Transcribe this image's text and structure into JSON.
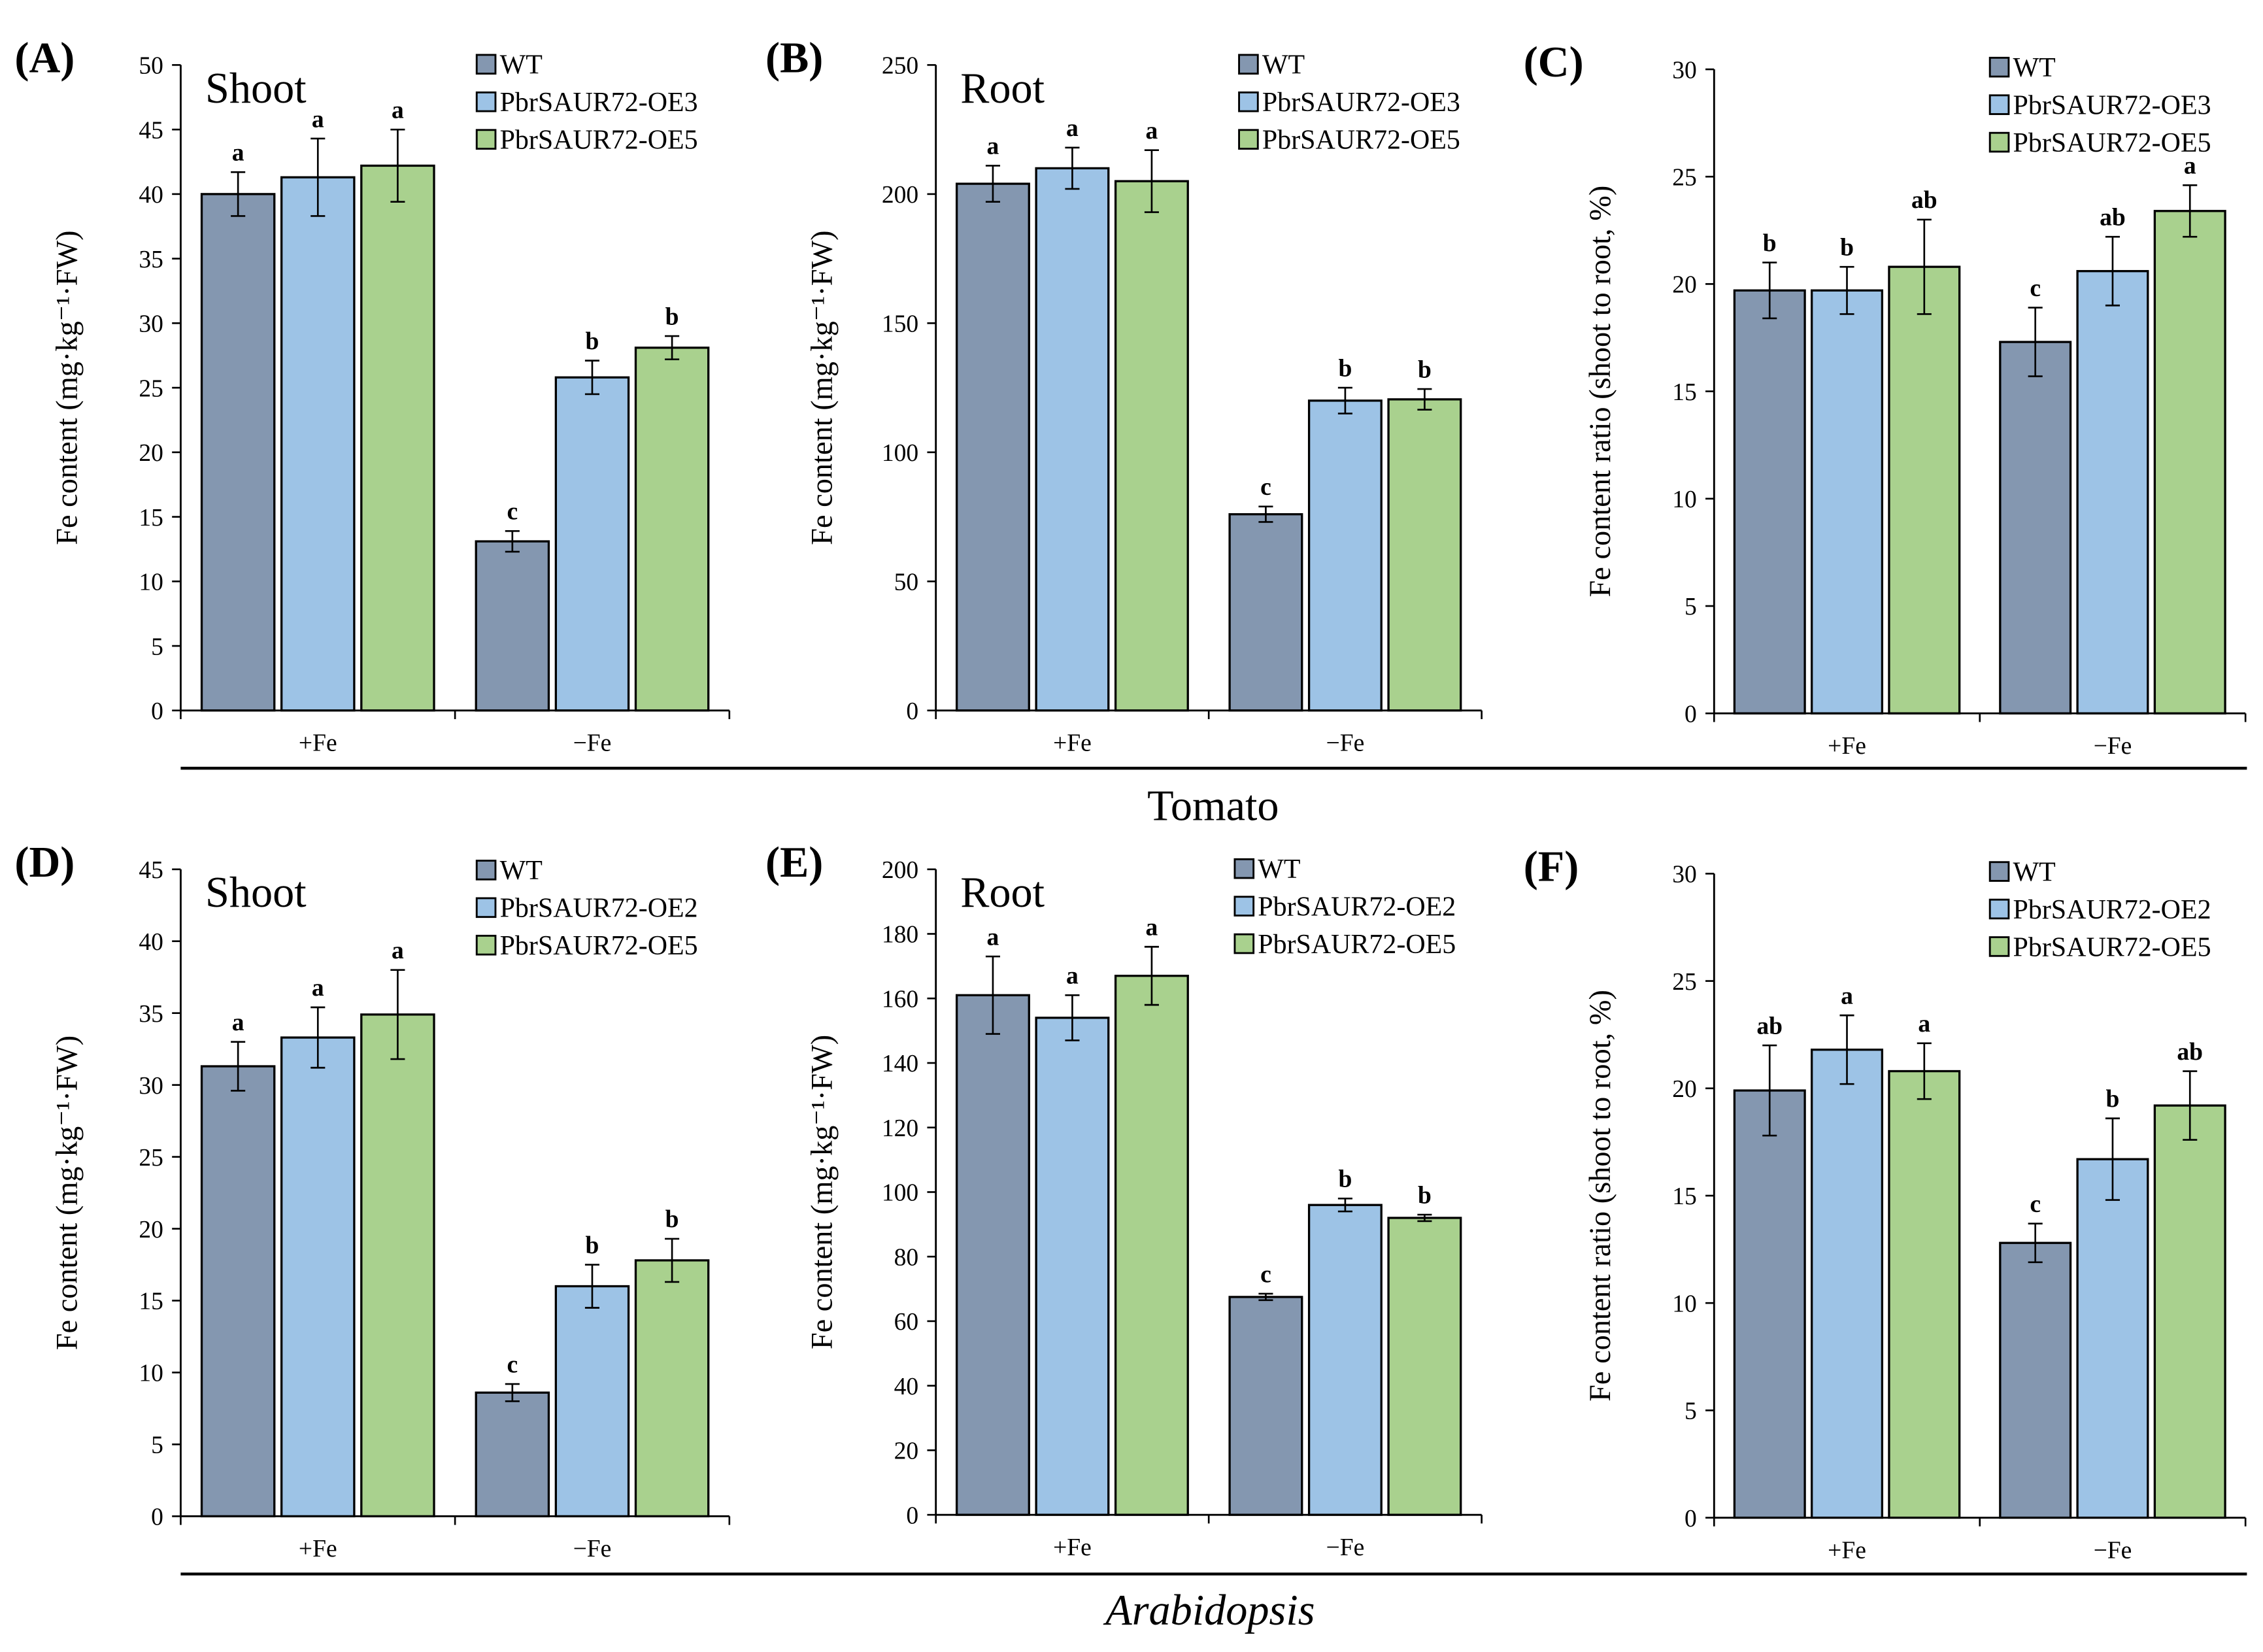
{
  "colors": {
    "WT": "#8497b0",
    "OE_a": "#9dc3e6",
    "OE5": "#a9d18e"
  },
  "species": [
    "Tomato",
    "Arabidopsis"
  ],
  "chart_data": [
    {
      "type": "bar",
      "panel": "(A)",
      "title": "Shoot",
      "ylabel": "Fe content (mg·kg⁻¹·FW)",
      "ylim": [
        0,
        50
      ],
      "ystep": 5,
      "categories": [
        "+Fe",
        "−Fe"
      ],
      "series": [
        {
          "name": "WT",
          "values": [
            40.0,
            13.1
          ],
          "errors": [
            1.7,
            0.8
          ],
          "letters": [
            "a",
            "c"
          ]
        },
        {
          "name": "PbrSAUR72-OE3",
          "values": [
            41.3,
            25.8
          ],
          "errors": [
            3.0,
            1.3
          ],
          "letters": [
            "a",
            "b"
          ]
        },
        {
          "name": "PbrSAUR72-OE5",
          "values": [
            42.2,
            28.1
          ],
          "errors": [
            2.8,
            0.9
          ],
          "letters": [
            "a",
            "b"
          ]
        }
      ]
    },
    {
      "type": "bar",
      "panel": "(B)",
      "title": "Root",
      "ylabel": "Fe content (mg·kg⁻¹·FW)",
      "ylim": [
        0,
        250
      ],
      "ystep": 50,
      "categories": [
        "+Fe",
        "−Fe"
      ],
      "series": [
        {
          "name": "WT",
          "values": [
            204,
            76
          ],
          "errors": [
            7,
            3
          ],
          "letters": [
            "a",
            "c"
          ]
        },
        {
          "name": "PbrSAUR72-OE3",
          "values": [
            210,
            120
          ],
          "errors": [
            8,
            5
          ],
          "letters": [
            "a",
            "b"
          ]
        },
        {
          "name": "PbrSAUR72-OE5",
          "values": [
            205,
            120.5
          ],
          "errors": [
            12,
            4
          ],
          "letters": [
            "a",
            "b"
          ]
        }
      ]
    },
    {
      "type": "bar",
      "panel": "(C)",
      "title": "",
      "ylabel": "Fe content ratio (shoot to root, %)",
      "ylim": [
        0,
        30
      ],
      "ystep": 5,
      "categories": [
        "+Fe",
        "−Fe"
      ],
      "series": [
        {
          "name": "WT",
          "values": [
            19.7,
            17.3
          ],
          "errors": [
            1.3,
            1.6
          ],
          "letters": [
            "b",
            "c"
          ]
        },
        {
          "name": "PbrSAUR72-OE3",
          "values": [
            19.7,
            20.6
          ],
          "errors": [
            1.1,
            1.6
          ],
          "letters": [
            "b",
            "ab"
          ]
        },
        {
          "name": "PbrSAUR72-OE5",
          "values": [
            20.8,
            23.4
          ],
          "errors": [
            2.2,
            1.2
          ],
          "letters": [
            "ab",
            "a"
          ]
        }
      ]
    },
    {
      "type": "bar",
      "panel": "(D)",
      "title": "Shoot",
      "ylabel": "Fe content (mg·kg⁻¹·FW)",
      "ylim": [
        0,
        45
      ],
      "ystep": 5,
      "categories": [
        "+Fe",
        "−Fe"
      ],
      "series": [
        {
          "name": "WT",
          "values": [
            31.3,
            8.6
          ],
          "errors": [
            1.7,
            0.6
          ],
          "letters": [
            "a",
            "c"
          ]
        },
        {
          "name": "PbrSAUR72-OE2",
          "values": [
            33.3,
            16.0
          ],
          "errors": [
            2.1,
            1.5
          ],
          "letters": [
            "a",
            "b"
          ]
        },
        {
          "name": "PbrSAUR72-OE5",
          "values": [
            34.9,
            17.8
          ],
          "errors": [
            3.1,
            1.5
          ],
          "letters": [
            "a",
            "b"
          ]
        }
      ]
    },
    {
      "type": "bar",
      "panel": "(E)",
      "title": "Root",
      "ylabel": "Fe content (mg·kg⁻¹·FW)",
      "ylim": [
        0,
        200
      ],
      "ystep": 20,
      "categories": [
        "+Fe",
        "−Fe"
      ],
      "series": [
        {
          "name": "WT",
          "values": [
            161,
            67.5
          ],
          "errors": [
            12,
            1
          ],
          "letters": [
            "a",
            "c"
          ]
        },
        {
          "name": "PbrSAUR72-OE2",
          "values": [
            154,
            96
          ],
          "errors": [
            7,
            2
          ],
          "letters": [
            "a",
            "b"
          ]
        },
        {
          "name": "PbrSAUR72-OE5",
          "values": [
            167,
            92
          ],
          "errors": [
            9,
            1
          ],
          "letters": [
            "a",
            "b"
          ]
        }
      ]
    },
    {
      "type": "bar",
      "panel": "(F)",
      "title": "",
      "ylabel": "Fe content ratio (shoot to root, %)",
      "ylim": [
        0,
        30
      ],
      "ystep": 5,
      "categories": [
        "+Fe",
        "−Fe"
      ],
      "series": [
        {
          "name": "WT",
          "values": [
            19.9,
            12.8
          ],
          "errors": [
            2.1,
            0.9
          ],
          "letters": [
            "ab",
            "c"
          ]
        },
        {
          "name": "PbrSAUR72-OE2",
          "values": [
            21.8,
            16.7
          ],
          "errors": [
            1.6,
            1.9
          ],
          "letters": [
            "a",
            "b"
          ]
        },
        {
          "name": "PbrSAUR72-OE5",
          "values": [
            20.8,
            19.2
          ],
          "errors": [
            1.3,
            1.6
          ],
          "letters": [
            "a",
            "ab"
          ]
        }
      ]
    }
  ]
}
